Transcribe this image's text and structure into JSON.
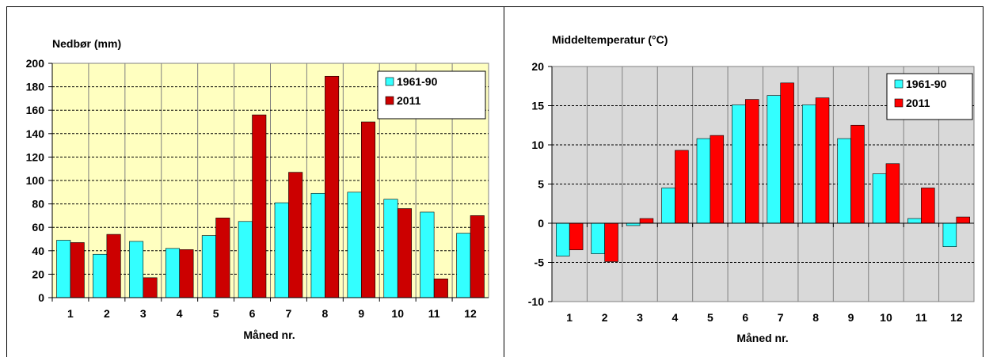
{
  "chart_data": [
    {
      "type": "bar",
      "title": "Nedbør (mm)",
      "xlabel": "Måned nr.",
      "ylabel": "",
      "categories": [
        "1",
        "2",
        "3",
        "4",
        "5",
        "6",
        "7",
        "8",
        "9",
        "10",
        "11",
        "12"
      ],
      "ylim": [
        0,
        200
      ],
      "yticks": [
        "0",
        "20",
        "40",
        "60",
        "80",
        "100",
        "120",
        "140",
        "160",
        "180",
        "200"
      ],
      "grid": true,
      "legend_position": "top-right",
      "plot_background": "#FFFFC0",
      "series": [
        {
          "name": "1961-90",
          "color": "#33FFFF",
          "values": [
            49,
            37,
            48,
            42,
            53,
            65,
            81,
            89,
            90,
            84,
            73,
            55
          ]
        },
        {
          "name": "2011",
          "color": "#CC0000",
          "values": [
            47,
            54,
            17,
            41,
            68,
            156,
            107,
            189,
            150,
            76,
            16,
            70
          ]
        }
      ]
    },
    {
      "type": "bar",
      "title": "Middeltemperatur (°C)",
      "xlabel": "Måned nr.",
      "ylabel": "",
      "categories": [
        "1",
        "2",
        "3",
        "4",
        "5",
        "6",
        "7",
        "8",
        "9",
        "10",
        "11",
        "12"
      ],
      "ylim": [
        -10,
        20
      ],
      "yticks": [
        "-10",
        "-5",
        "0",
        "5",
        "10",
        "15",
        "20"
      ],
      "grid": true,
      "legend_position": "top-right",
      "plot_background": "#D9D9D9",
      "series": [
        {
          "name": "1961-90",
          "color": "#33FFFF",
          "values": [
            -4.2,
            -3.9,
            -0.3,
            4.5,
            10.8,
            15.1,
            16.3,
            15.1,
            10.8,
            6.3,
            0.6,
            -3.0
          ]
        },
        {
          "name": "2011",
          "color": "#FF0000",
          "values": [
            -3.4,
            -4.9,
            0.6,
            9.3,
            11.2,
            15.8,
            17.9,
            16.0,
            12.5,
            7.6,
            4.5,
            0.8
          ]
        }
      ]
    }
  ]
}
